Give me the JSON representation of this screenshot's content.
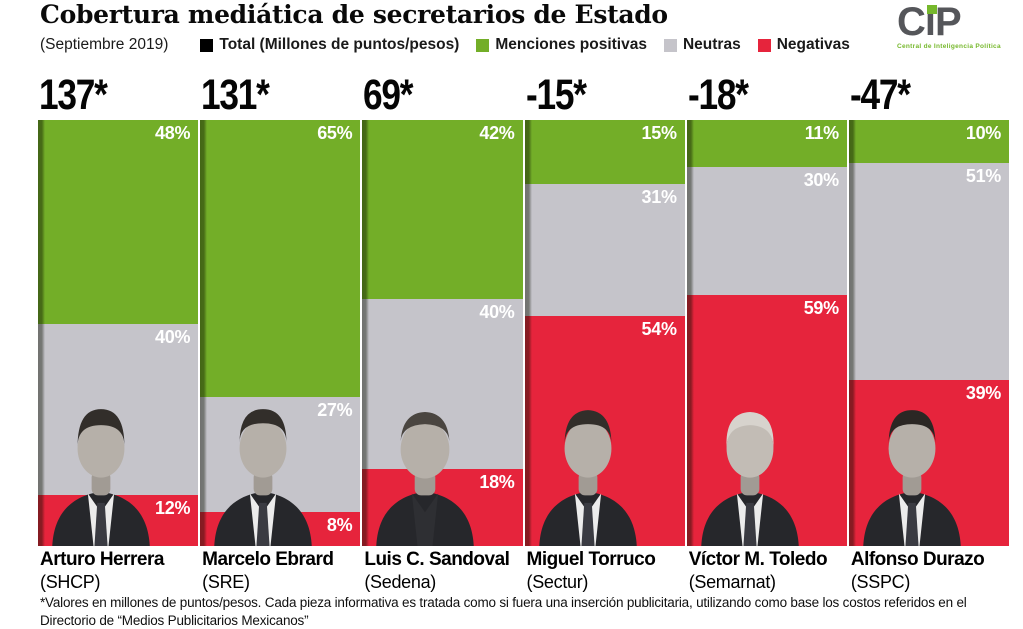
{
  "header": {
    "title": "Cobertura mediática de secretarios de Estado",
    "subtitle": "(Septiembre 2019)",
    "legend": [
      {
        "label": "Total (Millones de puntos/pesos)",
        "color": "#000000"
      },
      {
        "label": "Menciones positivas",
        "color": "#73ae28"
      },
      {
        "label": "Neutras",
        "color": "#c5c4ca"
      },
      {
        "label": "Negativas",
        "color": "#e6243c"
      }
    ],
    "logo": {
      "text": "CiP",
      "tagline": "Central de Inteligencia Política"
    }
  },
  "chart_data": {
    "type": "bar",
    "stacked": true,
    "orientation": "vertical",
    "unit": "%",
    "title": "Cobertura mediática de secretarios de Estado",
    "subtitle": "(Septiembre 2019)",
    "categories": [
      "Arturo Herrera",
      "Marcelo Ebrard",
      "Luis C. Sandoval",
      "Miguel Torruco",
      "Víctor M. Toledo",
      "Alfonso Durazo"
    ],
    "category_orgs": [
      "SHCP",
      "SRE",
      "Sedena",
      "Sectur",
      "Semarnat",
      "SSPC"
    ],
    "totals_millions_points_pesos": [
      137,
      131,
      69,
      -15,
      -18,
      -47
    ],
    "series": [
      {
        "name": "Menciones positivas",
        "color": "#73ae28",
        "values": [
          48,
          65,
          42,
          15,
          11,
          10
        ]
      },
      {
        "name": "Neutras",
        "color": "#c5c4ca",
        "values": [
          40,
          27,
          40,
          31,
          30,
          51
        ]
      },
      {
        "name": "Negativas",
        "color": "#e6243c",
        "values": [
          12,
          8,
          18,
          54,
          59,
          39
        ]
      }
    ],
    "legend_position": "top",
    "grid": false,
    "ylim": [
      0,
      100
    ]
  },
  "columns": [
    {
      "total": "137*",
      "positive": "48%",
      "neutral": "40%",
      "negative": "12%",
      "name": "Arturo Herrera",
      "org": "(SHCP)"
    },
    {
      "total": "131*",
      "positive": "65%",
      "neutral": "27%",
      "negative": "8%",
      "name": "Marcelo Ebrard",
      "org": "(SRE)"
    },
    {
      "total": "69*",
      "positive": "42%",
      "neutral": "40%",
      "negative": "18%",
      "name": "Luis C. Sandoval",
      "org": "(Sedena)"
    },
    {
      "total": "-15*",
      "positive": "15%",
      "neutral": "31%",
      "negative": "54%",
      "name": "Miguel Torruco",
      "org": "(Sectur)"
    },
    {
      "total": "-18*",
      "positive": "11%",
      "neutral": "30%",
      "negative": "59%",
      "name": "Víctor M. Toledo",
      "org": "(Semarnat)"
    },
    {
      "total": "-47*",
      "positive": "10%",
      "neutral": "51%",
      "negative": "39%",
      "name": "Alfonso Durazo",
      "org": "(SSPC)"
    }
  ],
  "footnote": "*Valores en millones de puntos/pesos. Cada pieza informativa es tratada como si fuera una inserción publicitaria, utilizando como base los costos referidos en el Directorio de “Medios Publicitarios Mexicanos”"
}
